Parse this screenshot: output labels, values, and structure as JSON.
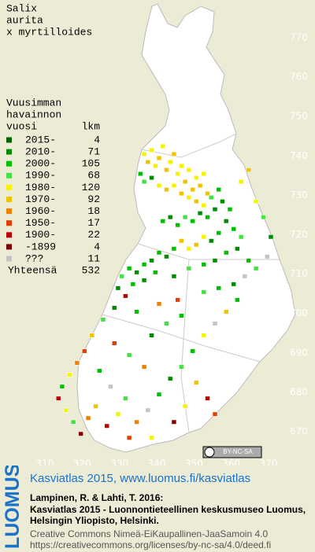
{
  "map": {
    "title_lines": [
      "Salix",
      "aurita",
      "x myrtilloides"
    ],
    "legend_header": [
      "Vuusimman",
      "havainnon",
      "vuosi"
    ],
    "count_header": "lkm",
    "periods": [
      {
        "label": "2015-",
        "count": 4,
        "color": "#006400"
      },
      {
        "label": "2010-",
        "count": 71,
        "color": "#008c00"
      },
      {
        "label": "2000-",
        "count": 105,
        "color": "#00c000"
      },
      {
        "label": "1990-",
        "count": 68,
        "color": "#44e044"
      },
      {
        "label": "1980-",
        "count": 120,
        "color": "#f4f400"
      },
      {
        "label": "1970-",
        "count": 92,
        "color": "#f0c400"
      },
      {
        "label": "1960-",
        "count": 18,
        "color": "#f08000"
      },
      {
        "label": "1950-",
        "count": 17,
        "color": "#e04000"
      },
      {
        "label": "1900-",
        "count": 22,
        "color": "#c00000"
      },
      {
        "label": "-1899",
        "count": 4,
        "color": "#800000"
      },
      {
        "label": "???",
        "count": 11,
        "color": "#c4c4c4"
      }
    ],
    "total_label": "Yhteensä",
    "total": 532,
    "xticks": [
      310,
      320,
      330,
      340,
      350,
      360,
      370
    ],
    "yticks": [
      670,
      680,
      690,
      700,
      710,
      720,
      730,
      740,
      750,
      760,
      770
    ],
    "xlim": [
      310,
      370
    ],
    "ylim": [
      670,
      770
    ],
    "records": [
      [
        336,
        740,
        4
      ],
      [
        337,
        738,
        5
      ],
      [
        338,
        741,
        4
      ],
      [
        339,
        737,
        4
      ],
      [
        340,
        739,
        5
      ],
      [
        341,
        742,
        4
      ],
      [
        342,
        736,
        5
      ],
      [
        343,
        738,
        4
      ],
      [
        344,
        740,
        5
      ],
      [
        345,
        735,
        4
      ],
      [
        346,
        737,
        4
      ],
      [
        347,
        733,
        5
      ],
      [
        348,
        736,
        4
      ],
      [
        349,
        731,
        5
      ],
      [
        350,
        734,
        4
      ],
      [
        351,
        732,
        5
      ],
      [
        352,
        735,
        4
      ],
      [
        353,
        730,
        5
      ],
      [
        335,
        735,
        2
      ],
      [
        336,
        733,
        3
      ],
      [
        338,
        734,
        1
      ],
      [
        340,
        732,
        4
      ],
      [
        342,
        731,
        5
      ],
      [
        344,
        732,
        4
      ],
      [
        346,
        730,
        5
      ],
      [
        348,
        729,
        4
      ],
      [
        350,
        728,
        5
      ],
      [
        352,
        727,
        4
      ],
      [
        354,
        729,
        3
      ],
      [
        356,
        731,
        2
      ],
      [
        357,
        728,
        1
      ],
      [
        359,
        726,
        2
      ],
      [
        355,
        726,
        1
      ],
      [
        353,
        724,
        2
      ],
      [
        351,
        725,
        1
      ],
      [
        349,
        723,
        2
      ],
      [
        347,
        724,
        3
      ],
      [
        345,
        722,
        2
      ],
      [
        343,
        724,
        1
      ],
      [
        341,
        723,
        2
      ],
      [
        358,
        723,
        1
      ],
      [
        360,
        721,
        2
      ],
      [
        362,
        719,
        3
      ],
      [
        356,
        720,
        2
      ],
      [
        354,
        718,
        1
      ],
      [
        352,
        719,
        4
      ],
      [
        350,
        717,
        5
      ],
      [
        348,
        716,
        4
      ],
      [
        346,
        718,
        5
      ],
      [
        344,
        716,
        2
      ],
      [
        342,
        714,
        1
      ],
      [
        340,
        715,
        2
      ],
      [
        338,
        713,
        1
      ],
      [
        336,
        712,
        2
      ],
      [
        334,
        710,
        1
      ],
      [
        332,
        711,
        2
      ],
      [
        330,
        709,
        3
      ],
      [
        329,
        706,
        1
      ],
      [
        331,
        704,
        8
      ],
      [
        333,
        707,
        2
      ],
      [
        336,
        708,
        1
      ],
      [
        339,
        710,
        2
      ],
      [
        344,
        709,
        1
      ],
      [
        348,
        711,
        3
      ],
      [
        352,
        712,
        2
      ],
      [
        355,
        713,
        1
      ],
      [
        358,
        715,
        2
      ],
      [
        361,
        716,
        1
      ],
      [
        364,
        713,
        2
      ],
      [
        366,
        711,
        3
      ],
      [
        363,
        709,
        10
      ],
      [
        360,
        707,
        1
      ],
      [
        356,
        706,
        2
      ],
      [
        352,
        705,
        3
      ],
      [
        345,
        703,
        7
      ],
      [
        340,
        702,
        6
      ],
      [
        334,
        700,
        2
      ],
      [
        328,
        701,
        1
      ],
      [
        325,
        698,
        3
      ],
      [
        322,
        694,
        5
      ],
      [
        320,
        690,
        7
      ],
      [
        318,
        687,
        6
      ],
      [
        316,
        684,
        4
      ],
      [
        314,
        681,
        2
      ],
      [
        313,
        678,
        8
      ],
      [
        315,
        675,
        4
      ],
      [
        317,
        672,
        3
      ],
      [
        319,
        669,
        9
      ],
      [
        321,
        673,
        6
      ],
      [
        323,
        676,
        5
      ],
      [
        326,
        671,
        8
      ],
      [
        329,
        674,
        4
      ],
      [
        331,
        678,
        3
      ],
      [
        334,
        672,
        6
      ],
      [
        337,
        675,
        10
      ],
      [
        340,
        679,
        2
      ],
      [
        343,
        683,
        1
      ],
      [
        346,
        686,
        3
      ],
      [
        349,
        690,
        2
      ],
      [
        352,
        694,
        4
      ],
      [
        355,
        697,
        10
      ],
      [
        358,
        700,
        5
      ],
      [
        361,
        703,
        2
      ],
      [
        336,
        686,
        6
      ],
      [
        332,
        689,
        3
      ],
      [
        328,
        692,
        7
      ],
      [
        324,
        685,
        2
      ],
      [
        327,
        681,
        10
      ],
      [
        338,
        694,
        1
      ],
      [
        342,
        697,
        3
      ],
      [
        346,
        699,
        2
      ],
      [
        350,
        682,
        5
      ],
      [
        353,
        678,
        8
      ],
      [
        355,
        674,
        7
      ],
      [
        347,
        676,
        4
      ],
      [
        344,
        672,
        9
      ],
      [
        332,
        668,
        7
      ],
      [
        338,
        668,
        4
      ],
      [
        362,
        733,
        4
      ],
      [
        364,
        736,
        5
      ],
      [
        366,
        728,
        4
      ],
      [
        368,
        724,
        3
      ],
      [
        370,
        719,
        1
      ],
      [
        369,
        714,
        10
      ]
    ]
  },
  "footer": {
    "logo": "LUOMUS",
    "headline": "Kasviatlas 2015, www.luomus.fi/kasviatlas",
    "citation": [
      "Lampinen, R. & Lahti, T. 2016:",
      "Kasviatlas 2015 - Luonnontieteellinen keskusmuseo Luomus,",
      "Helsingin Yliopisto, Helsinki."
    ],
    "license": [
      "Creative Commons Nimeä-EiKaupallinen-JaaSamoin 4.0",
      "https://creativecommons.org/licenses/by-nc-sa/4.0/deed.fi"
    ],
    "badge": "BY-NC-SA"
  }
}
